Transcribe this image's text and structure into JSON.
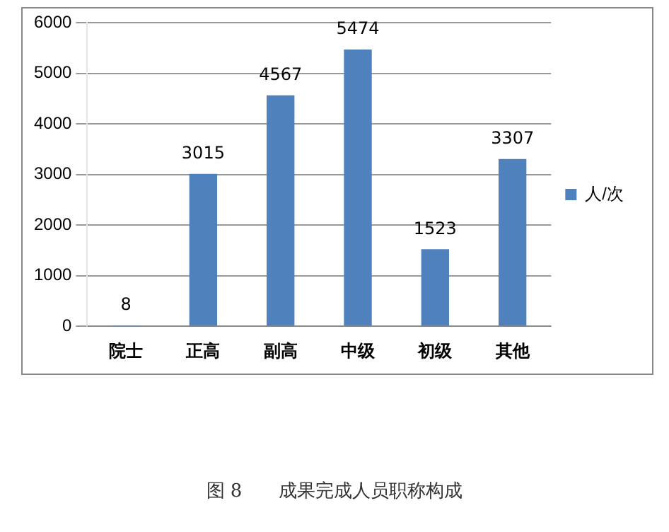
{
  "chart_data": {
    "type": "bar",
    "categories": [
      "院士",
      "正高",
      "副高",
      "中级",
      "初级",
      "其他"
    ],
    "series": [
      {
        "name": "人/次",
        "color": "#4f81bd",
        "values": [
          8,
          3015,
          4567,
          5474,
          1523,
          3307
        ]
      }
    ],
    "ylim": [
      0,
      6000
    ],
    "yticks": [
      0,
      1000,
      2000,
      3000,
      4000,
      5000,
      6000
    ],
    "grid": "y",
    "legend": "right",
    "data_labels": true,
    "annotations": [
      "图 8　　成果完成人员职称构成"
    ]
  }
}
